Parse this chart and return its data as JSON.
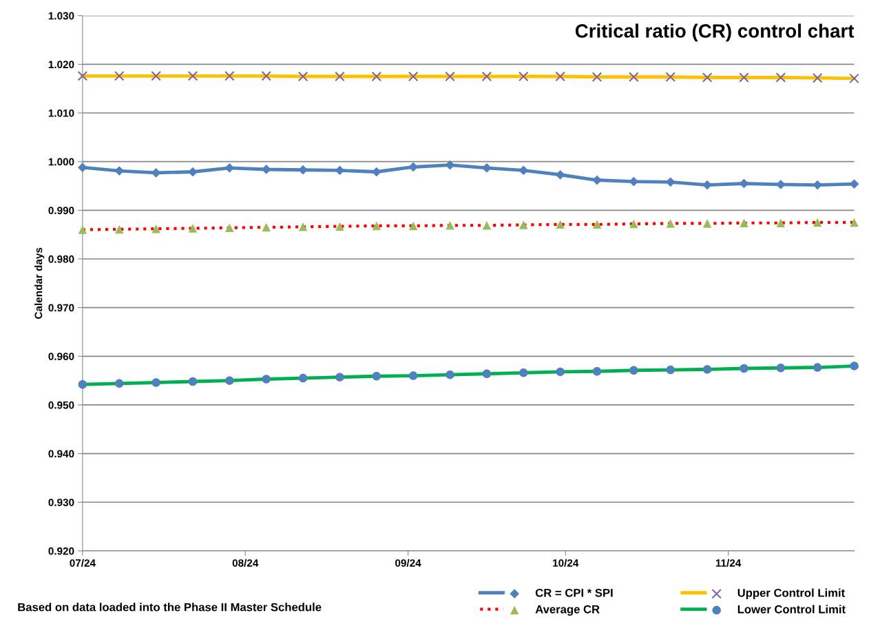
{
  "chart_data": {
    "type": "line",
    "title": "Critical ratio (CR) control chart",
    "ylabel": "Calendar days",
    "x": [
      "2024-07-01",
      "2024-07-08",
      "2024-07-15",
      "2024-07-22",
      "2024-07-29",
      "2024-08-05",
      "2024-08-12",
      "2024-08-19",
      "2024-08-26",
      "2024-09-02",
      "2024-09-09",
      "2024-09-16",
      "2024-09-23",
      "2024-09-30",
      "2024-10-07",
      "2024-10-14",
      "2024-10-21",
      "2024-10-28",
      "2024-11-04",
      "2024-11-11",
      "2024-11-18",
      "2024-11-25"
    ],
    "xlim": [
      "2024-07-01",
      "2024-11-25"
    ],
    "xticks": [
      {
        "value": "2024-07-01",
        "label": "07/24"
      },
      {
        "value": "2024-08-01",
        "label": "08/24"
      },
      {
        "value": "2024-09-01",
        "label": "09/24"
      },
      {
        "value": "2024-10-01",
        "label": "10/24"
      },
      {
        "value": "2024-11-01",
        "label": "11/24"
      }
    ],
    "ylim": [
      0.92,
      1.03
    ],
    "yticks": [
      {
        "value": 0.92,
        "label": "0.920"
      },
      {
        "value": 0.93,
        "label": "0.930"
      },
      {
        "value": 0.94,
        "label": "0.940"
      },
      {
        "value": 0.95,
        "label": "0.950"
      },
      {
        "value": 0.96,
        "label": "0.960"
      },
      {
        "value": 0.97,
        "label": "0.970"
      },
      {
        "value": 0.98,
        "label": "0.980"
      },
      {
        "value": 0.99,
        "label": "0.990"
      },
      {
        "value": 1.0,
        "label": "1.000"
      },
      {
        "value": 1.01,
        "label": "1.010"
      },
      {
        "value": 1.02,
        "label": "1.020"
      },
      {
        "value": 1.03,
        "label": "1.030"
      }
    ],
    "grid": "y",
    "legend": "bottom right",
    "series": [
      {
        "name": "CR = CPI * SPI",
        "color": "#4f81bd",
        "marker": "diamond",
        "line_style": "solid",
        "values": [
          0.9988,
          0.9981,
          0.9977,
          0.9979,
          0.9987,
          0.9984,
          0.9983,
          0.9982,
          0.9979,
          0.9989,
          0.9993,
          0.9987,
          0.9982,
          0.9973,
          0.9962,
          0.9959,
          0.9958,
          0.9952,
          0.9955,
          0.9953,
          0.9952,
          0.9954
        ]
      },
      {
        "name": "Average CR",
        "color": "#ff0000",
        "marker": "triangle",
        "line_style": "dotted",
        "values": [
          0.986,
          0.9861,
          0.9862,
          0.9863,
          0.9864,
          0.9865,
          0.9866,
          0.9867,
          0.9868,
          0.9868,
          0.9869,
          0.9869,
          0.987,
          0.9871,
          0.9871,
          0.9872,
          0.9873,
          0.9873,
          0.9874,
          0.9874,
          0.9875,
          0.9875
        ]
      },
      {
        "name": "Upper Control Limit",
        "color": "#ffc000",
        "marker": "cross",
        "line_style": "solid",
        "values": [
          1.0176,
          1.0176,
          1.0176,
          1.0176,
          1.0176,
          1.0176,
          1.0175,
          1.0175,
          1.0175,
          1.0175,
          1.0175,
          1.0175,
          1.0175,
          1.0175,
          1.0174,
          1.0174,
          1.0174,
          1.0173,
          1.0173,
          1.0173,
          1.0172,
          1.0171
        ]
      },
      {
        "name": "Lower Control Limit",
        "color": "#00b050",
        "marker": "circle",
        "line_style": "solid",
        "values": [
          0.9542,
          0.9544,
          0.9546,
          0.9548,
          0.955,
          0.9553,
          0.9555,
          0.9557,
          0.9559,
          0.956,
          0.9562,
          0.9564,
          0.9566,
          0.9568,
          0.9569,
          0.9571,
          0.9572,
          0.9573,
          0.9575,
          0.9576,
          0.9577,
          0.958
        ]
      }
    ],
    "annotations": [
      "Based on data loaded into the Phase II Master Schedule"
    ]
  }
}
